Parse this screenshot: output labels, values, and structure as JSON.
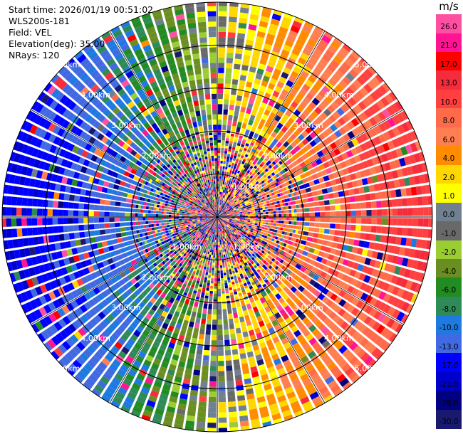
{
  "header": {
    "start_time": "Start time: 2026/01/19 00:51:02",
    "instrument": "WLS200s-181",
    "field": "Field: VEL",
    "elevation": "Elevation(deg): 35.00",
    "nrays": "NRays: 120"
  },
  "colorbar": {
    "unit": "m/s",
    "ticks": [
      "26.0",
      "21.0",
      "17.0",
      "13.0",
      "10.0",
      "8.0",
      "6.0",
      "4.0",
      "2.0",
      "1.0",
      "0.0",
      "-1.0",
      "-2.0",
      "-4.0",
      "-6.0",
      "-8.0",
      "-10.0",
      "-13.0",
      "-17.0",
      "-21.0",
      "-26.0",
      "-30.0"
    ],
    "colors": [
      "#ff4fa3",
      "#ff1493",
      "#ff0000",
      "#f52c3c",
      "#ff4040",
      "#ff6a4a",
      "#ff7f50",
      "#ff8c00",
      "#ffd700",
      "#ffff00",
      "#708090",
      "#696969",
      "#9acd32",
      "#6b8e23",
      "#228b22",
      "#2e8b57",
      "#1e7ae0",
      "#4169e1",
      "#0000ff",
      "#0000cd",
      "#000080",
      "#191970"
    ]
  },
  "chart_data": {
    "type": "heatmap",
    "projection": "polar-ppi",
    "field": "VEL",
    "units": "m/s",
    "n_rays": 120,
    "max_range_km": 5.0,
    "range_rings_km": [
      1.0,
      2.0,
      3.0,
      4.0,
      5.0
    ],
    "range_labels": [
      "1.00km",
      "2.00km",
      "3.00km",
      "4.00km",
      "5.00km"
    ],
    "color_scale": {
      "bounds": [
        -30,
        -26,
        -21,
        -17,
        -13,
        -10,
        -8,
        -6,
        -4,
        -2,
        -1,
        0,
        1,
        2,
        4,
        6,
        8,
        10,
        13,
        17,
        21,
        26,
        30
      ]
    },
    "radial_velocity_pattern": {
      "east_far_ms": 12,
      "west_far_ms": -16,
      "near_range_noise": true
    },
    "crosshair": true
  }
}
